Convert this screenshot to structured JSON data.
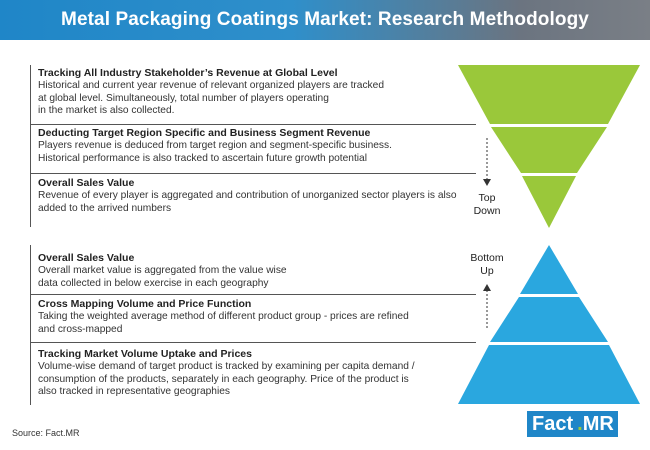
{
  "header": {
    "title": "Metal Packaging Coatings Market: Research Methodology"
  },
  "top_down": {
    "label": "Top Down",
    "label_line1": "Top",
    "label_line2": "Down",
    "color": "#9ac83a",
    "steps": [
      {
        "title": "Tracking All Industry Stakeholder’s Revenue at Global Level",
        "lines": [
          "Historical and current year revenue of relevant organized players are tracked",
          "at global level. Simultaneously, total number of players operating",
          "in the market is also collected."
        ]
      },
      {
        "title": "Deducting Target Region Specific and Business Segment Revenue",
        "lines": [
          "Players revenue is deduced from target region and segment-specific business.",
          "Historical performance is also tracked to ascertain future growth potential"
        ]
      },
      {
        "title": "Overall Sales Value",
        "lines": [
          "Revenue of every player is aggregated and contribution of unorganized sector players is also",
          "added to the arrived numbers"
        ]
      }
    ]
  },
  "bottom_up": {
    "label": "Bottom Up",
    "label_line1": "Bottom",
    "label_line2": "Up",
    "color": "#2aa7df",
    "steps": [
      {
        "title": "Overall Sales Value",
        "lines": [
          "Overall market value is aggregated from the value wise",
          "data collected in below exercise in each geography"
        ]
      },
      {
        "title": "Cross Mapping Volume and Price Function",
        "lines": [
          "Taking the weighted average method of different product group - prices are refined",
          "and cross-mapped"
        ]
      },
      {
        "title": "Tracking Market Volume Uptake and Prices",
        "lines": [
          "Volume-wise demand of target product is tracked by examining per capita demand /",
          "consumption of the products, separately in each geography. Price of the product is",
          "also tracked in representative geographies"
        ]
      }
    ]
  },
  "footer": {
    "source": "Source: Fact.MR",
    "logo_fact": "Fact",
    "logo_dot": ".",
    "logo_mr": "MR"
  }
}
